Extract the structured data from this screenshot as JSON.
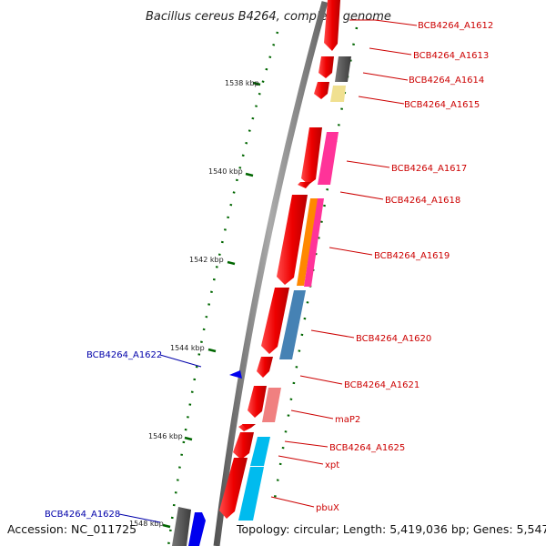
{
  "title": "Bacillus cereus B4264, complete genome",
  "footer": {
    "accession": "Accession: NC_011725",
    "topology": "Topology: circular; Length: 5,419,036 bp; Genes: 5,547"
  },
  "ticks": [
    "1538 kbp",
    "1540 kbp",
    "1542 kbp",
    "1544 kbp",
    "1546 kbp",
    "1548 kbp"
  ],
  "genes_right": [
    "BCB4264_A1612",
    "BCB4264_A1613",
    "BCB4264_A1614",
    "BCB4264_A1615",
    "BCB4264_A1617",
    "BCB4264_A1618",
    "BCB4264_A1619",
    "BCB4264_A1620",
    "BCB4264_A1621",
    "maP2",
    "BCB4264_A1625",
    "xpt",
    "pbuX"
  ],
  "genes_left": [
    "BCB4264_A1622",
    "BCB4264_A1628"
  ],
  "colors": {
    "backbone": "#888888",
    "cds_forward": "#ee0000",
    "tick_green": "#006600",
    "label_red": "#cc0000",
    "label_blue": "#0000aa",
    "reverse_strand": "#0000ee",
    "gray_feature": "#555555",
    "yellow_feature": "#f0e090",
    "pink_feature": "#ff3399",
    "orange_feature": "#ff8800",
    "steelblue_feature": "#4682b4",
    "salmon_feature": "#f08080",
    "cyan_feature": "#00bbee"
  }
}
